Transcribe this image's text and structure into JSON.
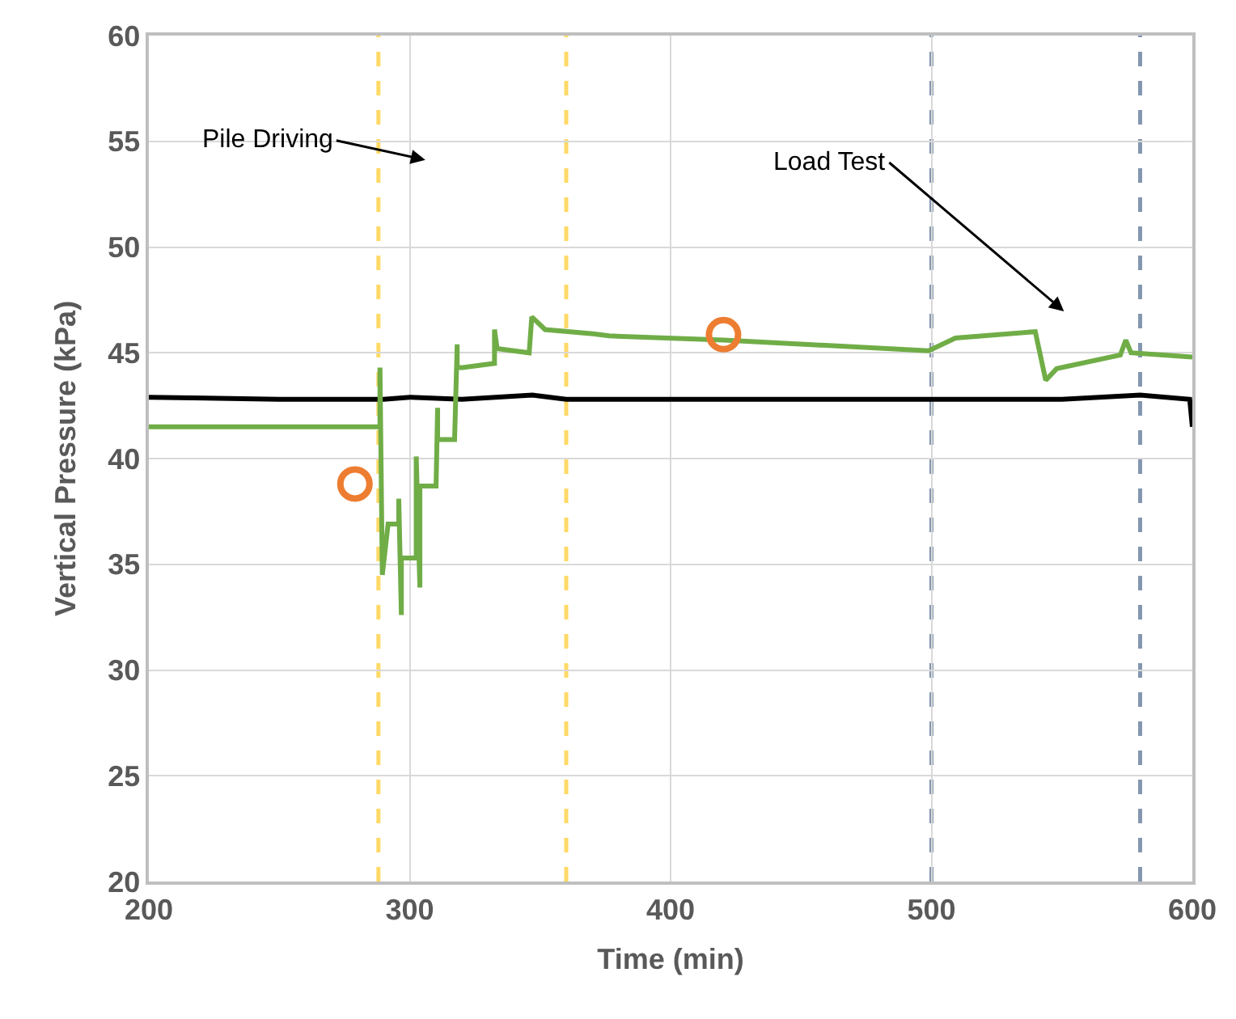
{
  "chart_data": {
    "type": "line",
    "xlabel": "Time (min)",
    "ylabel": "Vertical Pressure (kPa)",
    "xlim": [
      200,
      600
    ],
    "xticks": [
      200,
      300,
      400,
      500,
      600
    ],
    "ylim": [
      20,
      60
    ],
    "yticks": [
      20,
      25,
      30,
      35,
      40,
      45,
      50,
      55,
      60
    ],
    "grid": true,
    "series": [
      {
        "color": "#000000",
        "x": [
          200,
          250,
          290,
          300,
          320,
          347,
          360,
          400,
          450,
          500,
          550,
          580,
          599,
          600
        ],
        "values": [
          42.9,
          42.8,
          42.8,
          42.9,
          42.8,
          43.0,
          42.8,
          42.8,
          42.8,
          42.8,
          42.8,
          43.0,
          42.8,
          41.5
        ]
      },
      {
        "color": "#70ad47",
        "x": [
          200,
          288.6,
          288.6,
          289.5,
          291.7,
          295.8,
          295.8,
          296.8,
          296.8,
          302.5,
          302.5,
          303.9,
          303.9,
          310.1,
          310.7,
          310.7,
          312.1,
          317.2,
          318.2,
          318.2,
          320.3,
          332.5,
          332.5,
          333.5,
          345.8,
          346.8,
          351.9,
          370.3,
          376.4,
          420.3,
          498.9,
          509.2,
          539.8,
          543.8,
          548,
          572.4,
          574.5,
          576.5,
          600
        ],
        "values": [
          41.5,
          41.5,
          44.3,
          34.5,
          36.9,
          36.9,
          38.1,
          32.6,
          35.3,
          35.3,
          40.1,
          33.9,
          38.7,
          38.7,
          42.4,
          40.9,
          40.9,
          40.9,
          45.4,
          44.3,
          44.3,
          44.5,
          46.1,
          45.2,
          45.0,
          46.7,
          46.1,
          45.9,
          45.8,
          45.6,
          45.1,
          45.7,
          46.0,
          43.7,
          44.25,
          44.9,
          45.6,
          45.0,
          44.8
        ]
      },
      {
        "type": "scatter",
        "marker": "circle",
        "color": "#ed7d31",
        "x": [
          279,
          420.3
        ],
        "values": [
          38.8,
          45.86
        ]
      }
    ],
    "ref_lines": [
      {
        "axis": "x",
        "value": 288,
        "color": "#ffd966",
        "line_style": "dashed"
      },
      {
        "axis": "x",
        "value": 360,
        "color": "#ffd966",
        "line_style": "dashed"
      },
      {
        "axis": "x",
        "value": 500,
        "color": "#8497b0",
        "line_style": "dashed"
      },
      {
        "axis": "x",
        "value": 580,
        "color": "#8497b0",
        "line_style": "dashed"
      }
    ],
    "annotations": [
      "Pile Driving",
      "Load Test"
    ]
  }
}
